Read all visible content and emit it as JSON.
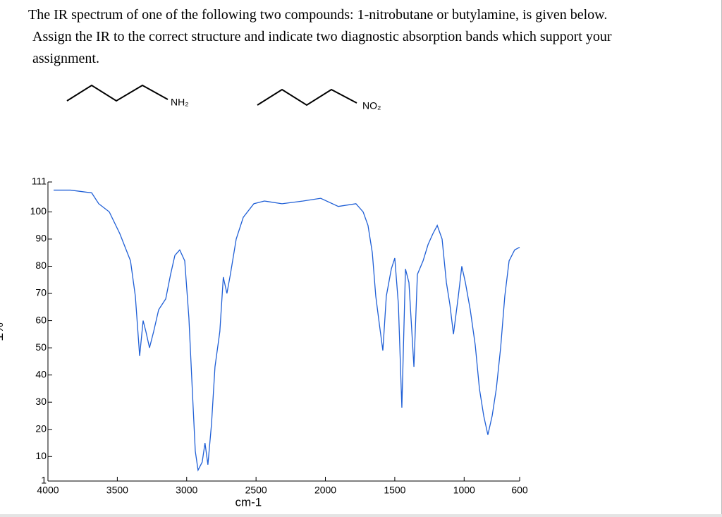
{
  "question": {
    "lines": [
      "The IR spectrum of one of the following two compounds:  1-nitrobutane or butylamine, is given below.",
      "Assign the IR to the correct structure and indicate two diagnostic absorption bands which support your",
      "assignment."
    ]
  },
  "structures": [
    {
      "label": "NH₂"
    },
    {
      "label": "NO₂"
    }
  ],
  "chart_data": {
    "type": "line",
    "x_label": "cm-1",
    "y_label": "%T",
    "xlim": [
      4000,
      600
    ],
    "xticks": [
      4000,
      3500,
      3000,
      2500,
      2000,
      1500,
      1000,
      600
    ],
    "ylim": [
      1,
      111
    ],
    "yticks": [
      1,
      10,
      20,
      30,
      40,
      50,
      60,
      70,
      80,
      90,
      100,
      111
    ],
    "color": "#1f5fd6",
    "x": [
      3959,
      3837,
      3685,
      3634,
      3558,
      3482,
      3405,
      3370,
      3339,
      3314,
      3294,
      3268,
      3238,
      3202,
      3151,
      3116,
      3085,
      3050,
      3014,
      2984,
      2958,
      2938,
      2918,
      2888,
      2868,
      2847,
      2821,
      2796,
      2761,
      2736,
      2710,
      2685,
      2643,
      2592,
      2516,
      2440,
      2313,
      2161,
      2034,
      1907,
      1780,
      1728,
      1693,
      1662,
      1637,
      1612,
      1586,
      1561,
      1525,
      1500,
      1474,
      1449,
      1423,
      1398,
      1362,
      1337,
      1296,
      1260,
      1225,
      1194,
      1159,
      1128,
      1103,
      1077,
      1042,
      1017,
      991,
      956,
      920,
      890,
      859,
      829,
      798,
      768,
      737,
      707,
      676,
      636,
      600
    ],
    "values": [
      108,
      108,
      107,
      103,
      100,
      92,
      82,
      69,
      47,
      60,
      56,
      50,
      56,
      64,
      68,
      77,
      84,
      86,
      82,
      61,
      33,
      12,
      5,
      8,
      15,
      7,
      22,
      43,
      56,
      76,
      70,
      77,
      90,
      98,
      103,
      104,
      103,
      104,
      105,
      102,
      103,
      100,
      95,
      85,
      69,
      59,
      49,
      69,
      79,
      83,
      66,
      28,
      79,
      74,
      43,
      77,
      82,
      88,
      92,
      95,
      90,
      74,
      66,
      55,
      69,
      80,
      74,
      64,
      51,
      35,
      25,
      18,
      25,
      35,
      50,
      69,
      82,
      86,
      87
    ]
  }
}
